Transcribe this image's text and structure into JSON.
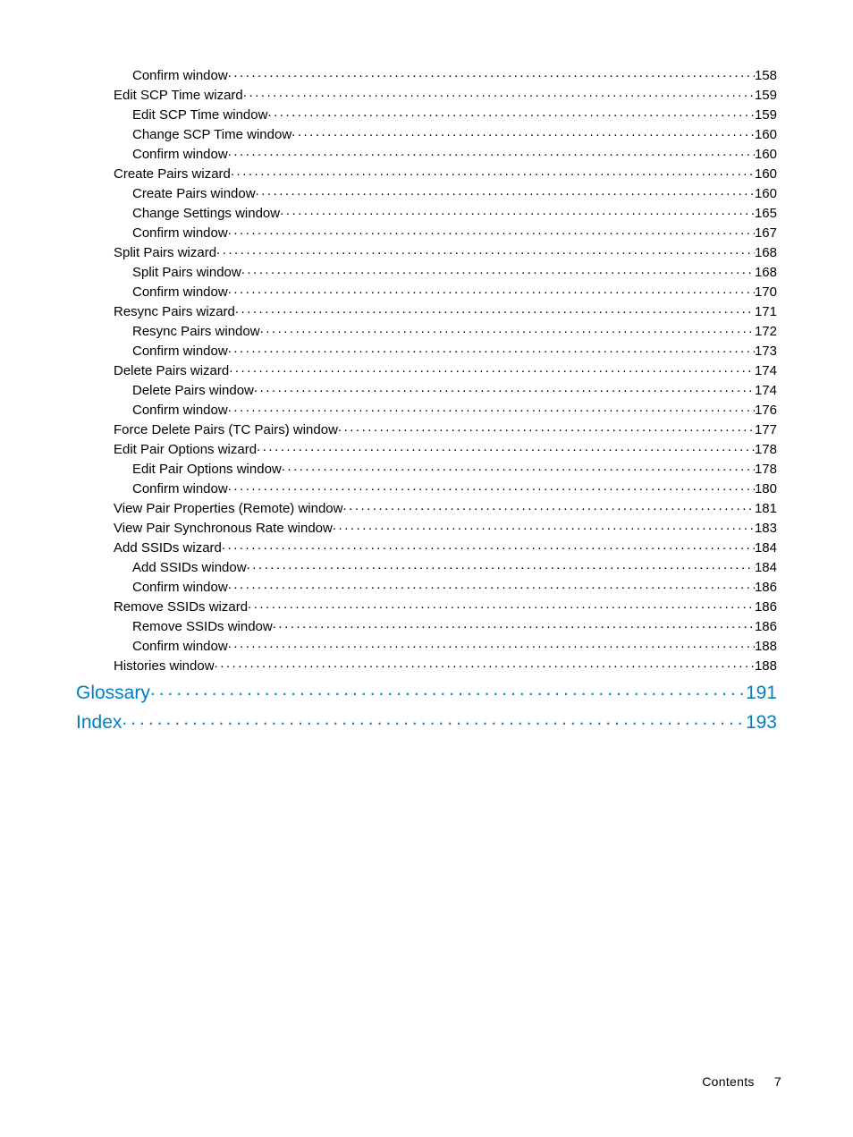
{
  "colors": {
    "body_text": "#000000",
    "link_text": "#007ec6",
    "background": "#ffffff"
  },
  "typography": {
    "body_font_size_pt": 11,
    "chapter_font_size_pt": 16,
    "leader_char": "."
  },
  "toc": [
    {
      "label": "Confirm window",
      "page": "158",
      "level": 3,
      "kind": "normal"
    },
    {
      "label": "Edit SCP Time wizard",
      "page": "159",
      "level": 2,
      "kind": "normal"
    },
    {
      "label": "Edit SCP Time window",
      "page": "159",
      "level": 3,
      "kind": "normal"
    },
    {
      "label": "Change SCP Time window",
      "page": "160",
      "level": 3,
      "kind": "normal"
    },
    {
      "label": "Confirm window",
      "page": "160",
      "level": 3,
      "kind": "normal"
    },
    {
      "label": "Create Pairs wizard",
      "page": "160",
      "level": 2,
      "kind": "normal"
    },
    {
      "label": "Create Pairs window",
      "page": "160",
      "level": 3,
      "kind": "normal"
    },
    {
      "label": "Change Settings window",
      "page": "165",
      "level": 3,
      "kind": "normal"
    },
    {
      "label": "Confirm window",
      "page": "167",
      "level": 3,
      "kind": "normal"
    },
    {
      "label": "Split Pairs wizard",
      "page": "168",
      "level": 2,
      "kind": "normal"
    },
    {
      "label": "Split Pairs window",
      "page": "168",
      "level": 3,
      "kind": "normal"
    },
    {
      "label": "Confirm window",
      "page": "170",
      "level": 3,
      "kind": "normal"
    },
    {
      "label": "Resync Pairs wizard",
      "page": "171",
      "level": 2,
      "kind": "normal"
    },
    {
      "label": "Resync Pairs window",
      "page": "172",
      "level": 3,
      "kind": "normal"
    },
    {
      "label": "Confirm window",
      "page": "173",
      "level": 3,
      "kind": "normal"
    },
    {
      "label": "Delete Pairs wizard",
      "page": "174",
      "level": 2,
      "kind": "normal"
    },
    {
      "label": "Delete Pairs window",
      "page": "174",
      "level": 3,
      "kind": "normal"
    },
    {
      "label": "Confirm window",
      "page": "176",
      "level": 3,
      "kind": "normal"
    },
    {
      "label": "Force Delete Pairs (TC Pairs) window",
      "page": "177",
      "level": 2,
      "kind": "normal"
    },
    {
      "label": "Edit Pair Options wizard",
      "page": "178",
      "level": 2,
      "kind": "normal"
    },
    {
      "label": "Edit Pair Options window",
      "page": "178",
      "level": 3,
      "kind": "normal"
    },
    {
      "label": "Confirm window",
      "page": "180",
      "level": 3,
      "kind": "normal"
    },
    {
      "label": "View Pair Properties (Remote) window",
      "page": "181",
      "level": 2,
      "kind": "normal"
    },
    {
      "label": "View Pair Synchronous Rate window",
      "page": "183",
      "level": 2,
      "kind": "normal"
    },
    {
      "label": "Add SSIDs wizard",
      "page": "184",
      "level": 2,
      "kind": "normal"
    },
    {
      "label": "Add SSIDs window",
      "page": "184",
      "level": 3,
      "kind": "normal"
    },
    {
      "label": "Confirm window",
      "page": "186",
      "level": 3,
      "kind": "normal"
    },
    {
      "label": "Remove SSIDs wizard",
      "page": "186",
      "level": 2,
      "kind": "normal"
    },
    {
      "label": "Remove SSIDs window",
      "page": "186",
      "level": 3,
      "kind": "normal"
    },
    {
      "label": "Confirm window",
      "page": "188",
      "level": 3,
      "kind": "normal"
    },
    {
      "label": "Histories window",
      "page": "188",
      "level": 2,
      "kind": "normal"
    },
    {
      "label": "Glossary",
      "page": "191",
      "level": 0,
      "kind": "chapter"
    },
    {
      "label": "Index",
      "page": "193",
      "level": 0,
      "kind": "chapter"
    }
  ],
  "footer": {
    "label": "Contents",
    "page_number": "7"
  }
}
